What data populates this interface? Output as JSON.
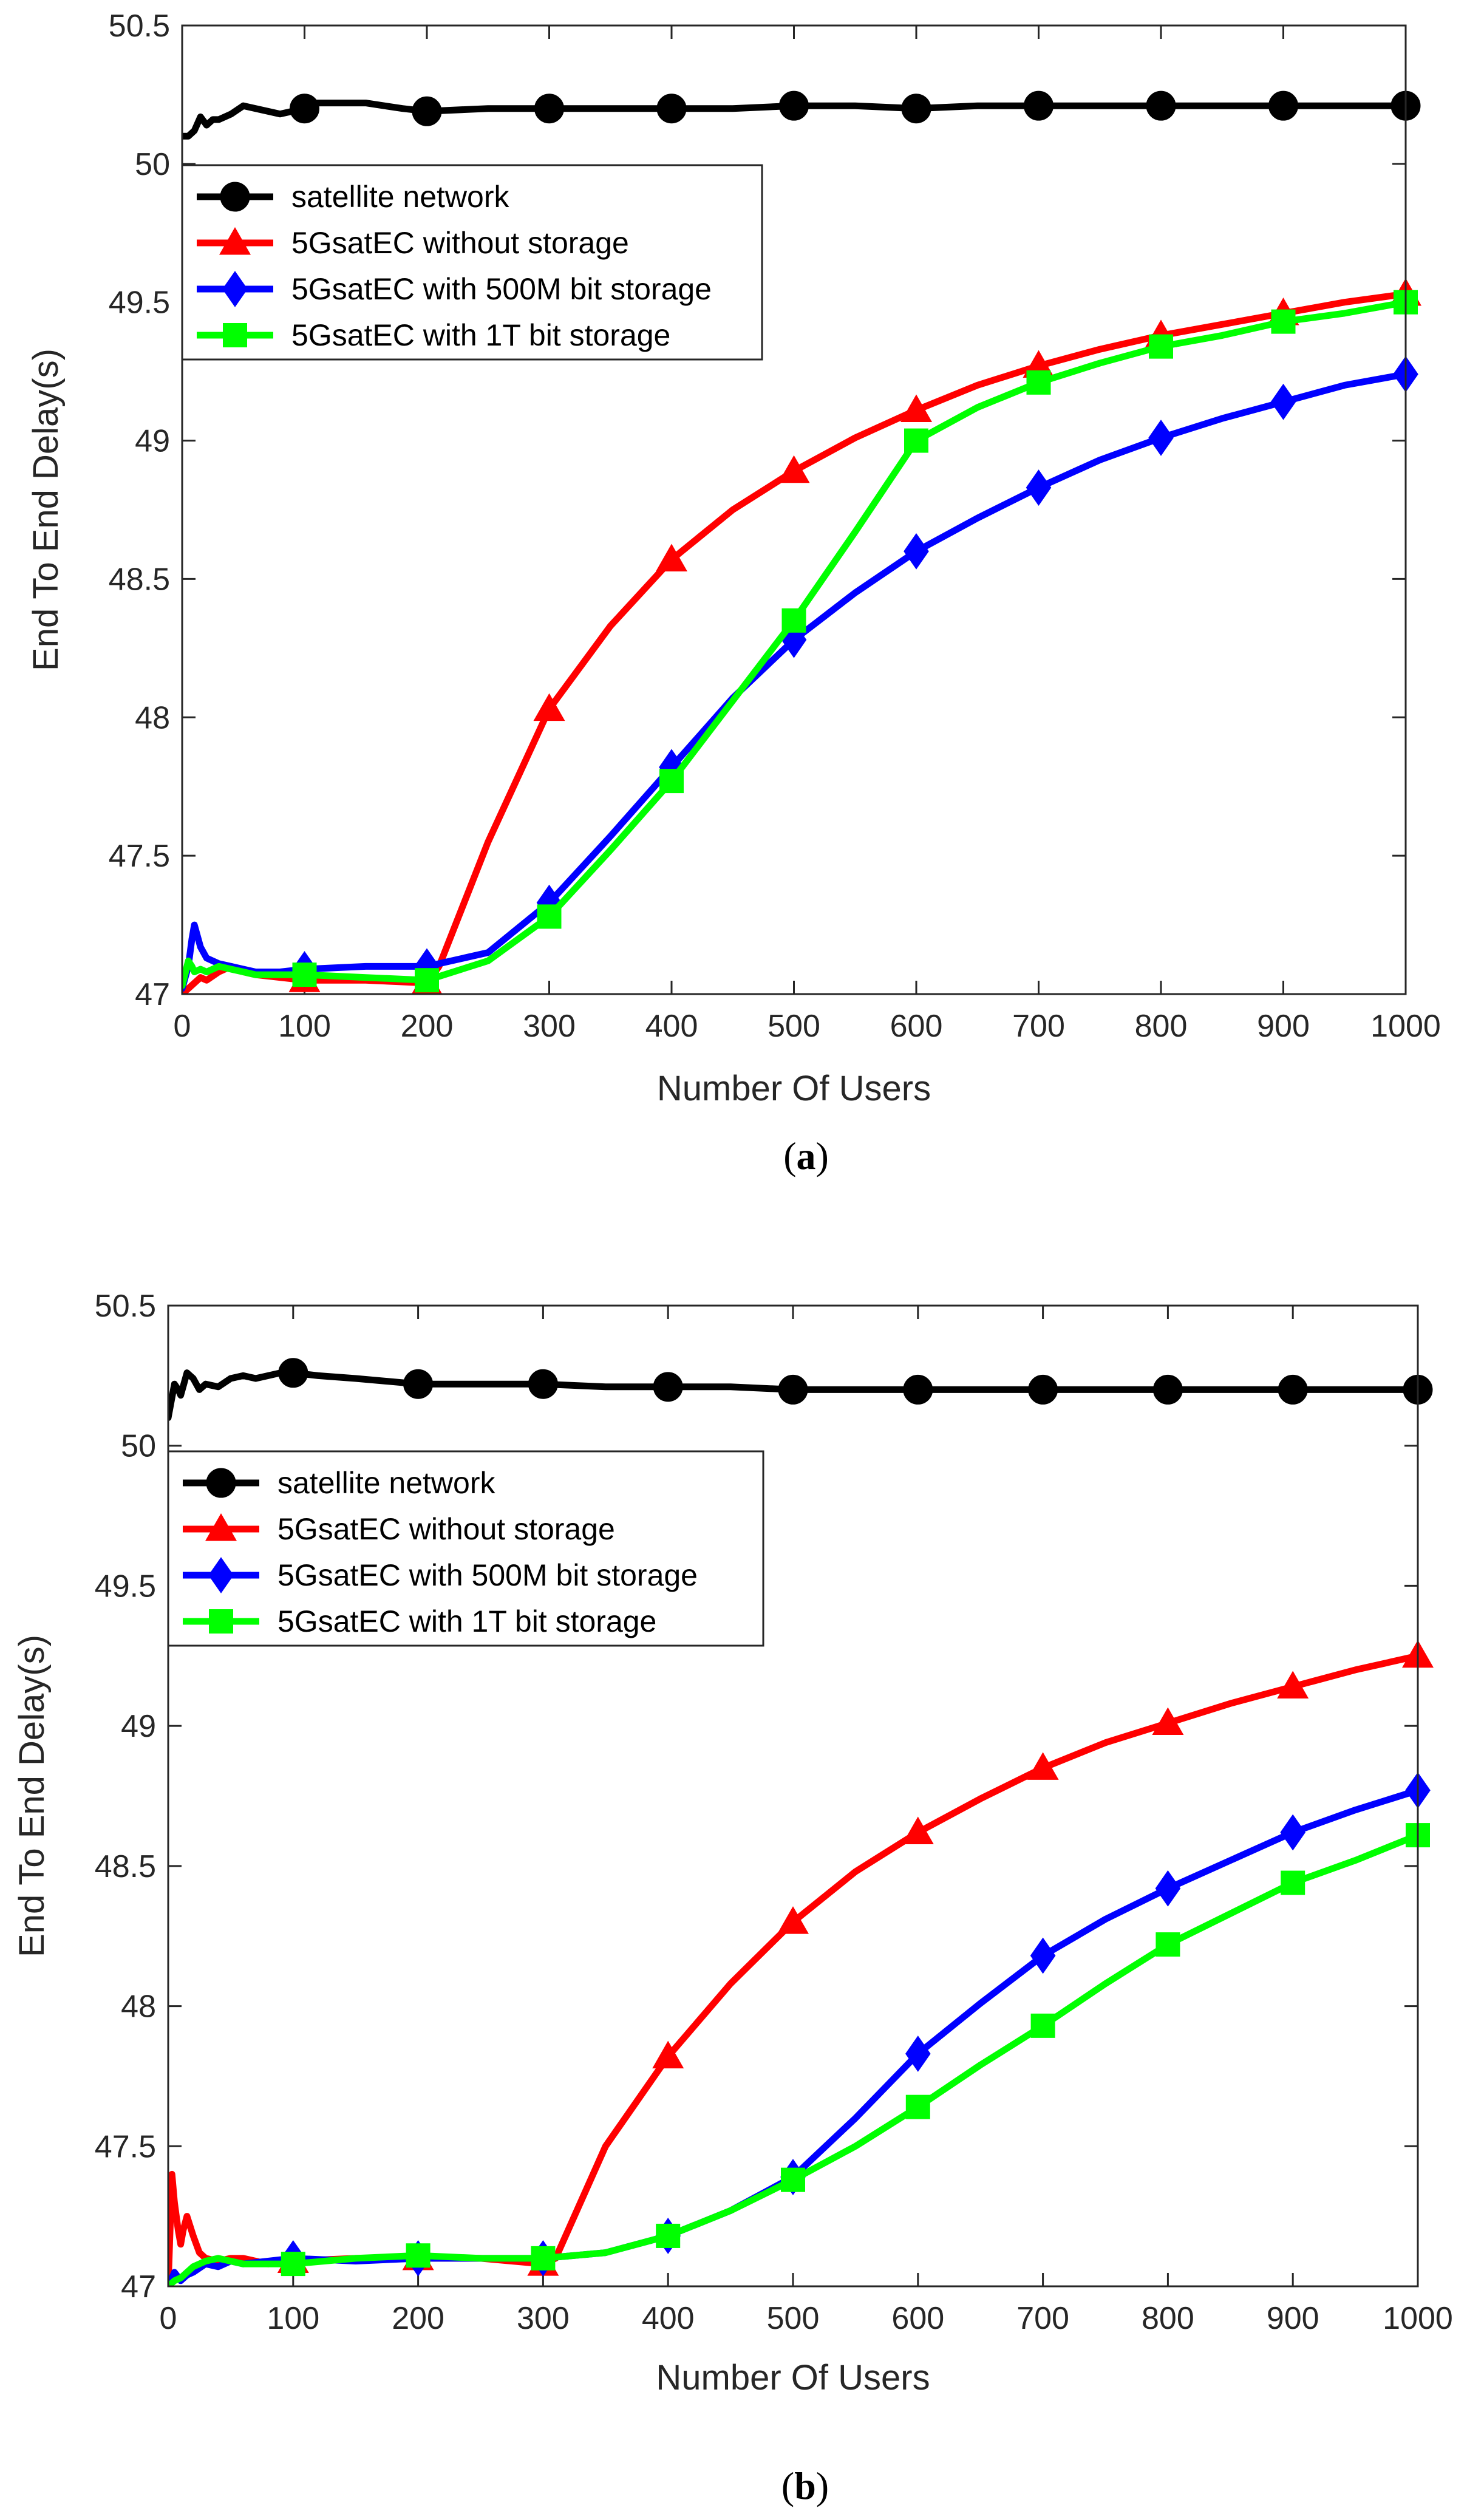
{
  "chart_data": [
    {
      "type": "line",
      "caption": "a",
      "xlabel": "Number Of Users",
      "ylabel": "End To End Delay(s)",
      "xlim": [
        0,
        1000
      ],
      "ylim": [
        47,
        50.5
      ],
      "xticks": [
        "0",
        "100",
        "200",
        "300",
        "400",
        "500",
        "600",
        "700",
        "800",
        "900",
        "1000"
      ],
      "yticks": [
        "47",
        "47.5",
        "48",
        "48.5",
        "49",
        "49.5",
        "50",
        "50.5"
      ],
      "legend_position": "upper-left",
      "series": [
        {
          "name": "satellite network",
          "color": "#000000",
          "marker": "circle",
          "x": [
            0,
            5,
            10,
            15,
            20,
            25,
            30,
            40,
            50,
            60,
            70,
            80,
            90,
            100,
            110,
            130,
            150,
            180,
            200,
            250,
            300,
            350,
            400,
            450,
            500,
            550,
            600,
            650,
            700,
            750,
            800,
            850,
            900,
            950,
            1000
          ],
          "y": [
            50.1,
            50.1,
            50.12,
            50.17,
            50.14,
            50.16,
            50.16,
            50.18,
            50.21,
            50.2,
            50.19,
            50.18,
            50.19,
            50.2,
            50.22,
            50.22,
            50.22,
            50.2,
            50.19,
            50.2,
            50.2,
            50.2,
            50.2,
            50.2,
            50.21,
            50.21,
            50.2,
            50.21,
            50.21,
            50.21,
            50.21,
            50.21,
            50.21,
            50.21,
            50.21
          ],
          "markers_x": [
            100,
            200,
            300,
            400,
            500,
            600,
            700,
            800,
            900,
            1000
          ]
        },
        {
          "name": "5GsatEC without storage",
          "color": "#ff0000",
          "marker": "triangle",
          "x": [
            0,
            5,
            10,
            15,
            20,
            30,
            40,
            50,
            60,
            80,
            100,
            150,
            200,
            210,
            250,
            300,
            350,
            400,
            450,
            500,
            550,
            600,
            650,
            700,
            750,
            800,
            850,
            900,
            950,
            1000
          ],
          "y": [
            47.0,
            47.02,
            47.04,
            47.06,
            47.05,
            47.08,
            47.1,
            47.08,
            47.07,
            47.06,
            47.05,
            47.05,
            47.04,
            47.1,
            47.55,
            48.03,
            48.33,
            48.57,
            48.75,
            48.89,
            49.01,
            49.11,
            49.2,
            49.27,
            49.33,
            49.38,
            49.42,
            49.46,
            49.5,
            49.53
          ],
          "markers_x": [
            100,
            200,
            300,
            400,
            500,
            600,
            700,
            800,
            900,
            1000
          ]
        },
        {
          "name": "5GsatEC with 500M bit storage",
          "color": "#0000ff",
          "marker": "diamond",
          "x": [
            0,
            5,
            8,
            10,
            15,
            20,
            30,
            40,
            50,
            60,
            80,
            100,
            150,
            200,
            250,
            300,
            350,
            400,
            450,
            500,
            550,
            600,
            650,
            700,
            750,
            800,
            850,
            900,
            950,
            1000
          ],
          "y": [
            47.02,
            47.1,
            47.2,
            47.25,
            47.17,
            47.13,
            47.11,
            47.1,
            47.09,
            47.08,
            47.08,
            47.09,
            47.1,
            47.1,
            47.15,
            47.33,
            47.57,
            47.82,
            48.07,
            48.28,
            48.45,
            48.6,
            48.72,
            48.83,
            48.93,
            49.01,
            49.08,
            49.14,
            49.2,
            49.24
          ],
          "markers_x": [
            100,
            200,
            300,
            400,
            500,
            600,
            700,
            800,
            900,
            1000
          ]
        },
        {
          "name": "5GsatEC with 1T bit storage",
          "color": "#00ff00",
          "marker": "square",
          "x": [
            0,
            5,
            8,
            10,
            15,
            20,
            30,
            40,
            50,
            60,
            80,
            100,
            150,
            200,
            250,
            300,
            350,
            400,
            450,
            500,
            550,
            600,
            650,
            700,
            750,
            800,
            850,
            900,
            950,
            1000
          ],
          "y": [
            47.03,
            47.12,
            47.1,
            47.08,
            47.09,
            47.08,
            47.1,
            47.09,
            47.08,
            47.07,
            47.07,
            47.07,
            47.06,
            47.05,
            47.12,
            47.28,
            47.52,
            47.77,
            48.06,
            48.35,
            48.67,
            49.0,
            49.12,
            49.21,
            49.28,
            49.34,
            49.38,
            49.43,
            49.46,
            49.5
          ],
          "markers_x": [
            100,
            200,
            300,
            400,
            500,
            600,
            700,
            800,
            900,
            1000
          ]
        }
      ]
    },
    {
      "type": "line",
      "caption": "b",
      "xlabel": "Number Of Users",
      "ylabel": "End To End Delay(s)",
      "xlim": [
        0,
        1000
      ],
      "ylim": [
        47,
        50.5
      ],
      "xticks": [
        "0",
        "100",
        "200",
        "300",
        "400",
        "500",
        "600",
        "700",
        "800",
        "900",
        "1000"
      ],
      "yticks": [
        "47",
        "47.5",
        "48",
        "48.5",
        "49",
        "49.5",
        "50",
        "50.5"
      ],
      "legend_position": "upper-left",
      "series": [
        {
          "name": "satellite network",
          "color": "#000000",
          "marker": "circle",
          "x": [
            0,
            5,
            8,
            10,
            15,
            20,
            25,
            30,
            40,
            50,
            60,
            70,
            80,
            90,
            100,
            120,
            150,
            200,
            250,
            300,
            350,
            400,
            450,
            500,
            550,
            600,
            650,
            700,
            750,
            800,
            850,
            900,
            950,
            1000
          ],
          "y": [
            50.1,
            50.22,
            50.2,
            50.18,
            50.26,
            50.24,
            50.2,
            50.22,
            50.21,
            50.24,
            50.25,
            50.24,
            50.25,
            50.26,
            50.26,
            50.25,
            50.24,
            50.22,
            50.22,
            50.22,
            50.21,
            50.21,
            50.21,
            50.2,
            50.2,
            50.2,
            50.2,
            50.2,
            50.2,
            50.2,
            50.2,
            50.2,
            50.2,
            50.2
          ],
          "markers_x": [
            100,
            200,
            300,
            400,
            500,
            600,
            700,
            800,
            900,
            1000
          ]
        },
        {
          "name": "5GsatEC without storage",
          "color": "#ff0000",
          "marker": "triangle",
          "x": [
            0,
            3,
            5,
            8,
            10,
            12,
            15,
            20,
            25,
            30,
            40,
            50,
            60,
            80,
            100,
            150,
            200,
            250,
            300,
            310,
            350,
            400,
            450,
            500,
            550,
            600,
            650,
            700,
            750,
            800,
            850,
            900,
            950,
            1000
          ],
          "y": [
            47.0,
            47.4,
            47.3,
            47.2,
            47.15,
            47.2,
            47.25,
            47.18,
            47.12,
            47.1,
            47.09,
            47.1,
            47.1,
            47.08,
            47.09,
            47.1,
            47.1,
            47.1,
            47.08,
            47.1,
            47.5,
            47.82,
            48.08,
            48.3,
            48.48,
            48.62,
            48.74,
            48.85,
            48.94,
            49.01,
            49.08,
            49.14,
            49.2,
            49.25
          ],
          "markers_x": [
            100,
            200,
            300,
            400,
            500,
            600,
            700,
            800,
            900,
            1000
          ]
        },
        {
          "name": "5GsatEC with 500M bit storage",
          "color": "#0000ff",
          "marker": "diamond",
          "x": [
            0,
            5,
            10,
            15,
            20,
            30,
            40,
            50,
            60,
            80,
            100,
            150,
            200,
            250,
            300,
            350,
            400,
            450,
            500,
            550,
            600,
            650,
            700,
            750,
            800,
            850,
            900,
            950,
            1000
          ],
          "y": [
            47.0,
            47.05,
            47.02,
            47.04,
            47.05,
            47.08,
            47.07,
            47.09,
            47.08,
            47.09,
            47.1,
            47.09,
            47.1,
            47.1,
            47.1,
            47.12,
            47.18,
            47.27,
            47.39,
            47.6,
            47.83,
            48.01,
            48.18,
            48.31,
            48.42,
            48.52,
            48.62,
            48.7,
            48.77
          ],
          "markers_x": [
            100,
            200,
            300,
            400,
            500,
            600,
            700,
            800,
            900,
            1000
          ]
        },
        {
          "name": "5GsatEC with 1T bit storage",
          "color": "#00ff00",
          "marker": "square",
          "x": [
            0,
            5,
            10,
            15,
            20,
            30,
            40,
            50,
            60,
            80,
            100,
            150,
            200,
            250,
            300,
            350,
            400,
            450,
            500,
            550,
            600,
            650,
            700,
            750,
            800,
            850,
            900,
            950,
            1000
          ],
          "y": [
            47.0,
            47.02,
            47.03,
            47.05,
            47.07,
            47.09,
            47.1,
            47.09,
            47.08,
            47.08,
            47.08,
            47.1,
            47.11,
            47.1,
            47.1,
            47.12,
            47.18,
            47.27,
            47.38,
            47.5,
            47.64,
            47.79,
            47.93,
            48.08,
            48.22,
            48.33,
            48.44,
            48.52,
            48.61
          ],
          "markers_x": [
            100,
            200,
            300,
            400,
            500,
            600,
            700,
            800,
            900,
            1000
          ]
        }
      ]
    }
  ]
}
